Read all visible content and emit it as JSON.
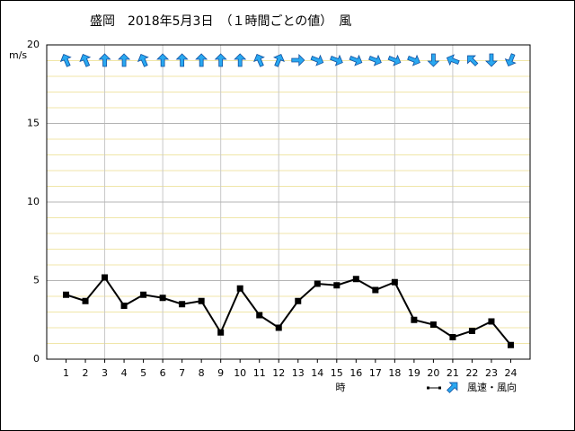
{
  "chart_data": {
    "type": "line",
    "title": "盛岡　2018年5月3日　（１時間ごとの値）　風",
    "y_label": "m/s",
    "x_label": "時",
    "legend": "風速・風向",
    "x": [
      1,
      2,
      3,
      4,
      5,
      6,
      7,
      8,
      9,
      10,
      11,
      12,
      13,
      14,
      15,
      16,
      17,
      18,
      19,
      20,
      21,
      22,
      23,
      24
    ],
    "series": [
      {
        "name": "風速",
        "color": "#000000",
        "values": [
          4.1,
          3.7,
          5.2,
          3.4,
          4.1,
          3.9,
          3.5,
          3.7,
          1.7,
          4.5,
          2.8,
          2.0,
          3.7,
          4.8,
          4.7,
          5.1,
          4.4,
          4.9,
          2.5,
          2.2,
          1.4,
          1.8,
          2.4,
          0.9
        ]
      }
    ],
    "directions": [
      337,
      337,
      0,
      0,
      337,
      0,
      0,
      0,
      0,
      0,
      337,
      22,
      90,
      112,
      112,
      112,
      112,
      112,
      112,
      180,
      292,
      315,
      180,
      202
    ],
    "arrow_color": "#29a8f0",
    "xlim": [
      0,
      25
    ],
    "xticks": [
      1,
      2,
      3,
      4,
      5,
      6,
      7,
      8,
      9,
      10,
      11,
      12,
      13,
      14,
      15,
      16,
      17,
      18,
      19,
      20,
      21,
      22,
      23,
      24
    ],
    "ylim": [
      0,
      20
    ],
    "yticks": [
      0,
      5,
      10,
      15,
      20
    ],
    "minor_yticks": [
      1,
      2,
      3,
      4,
      6,
      7,
      8,
      9,
      11,
      12,
      13,
      14,
      16,
      17,
      18,
      19
    ],
    "vgrid": [
      3,
      6,
      9,
      12,
      15,
      18,
      21
    ]
  }
}
